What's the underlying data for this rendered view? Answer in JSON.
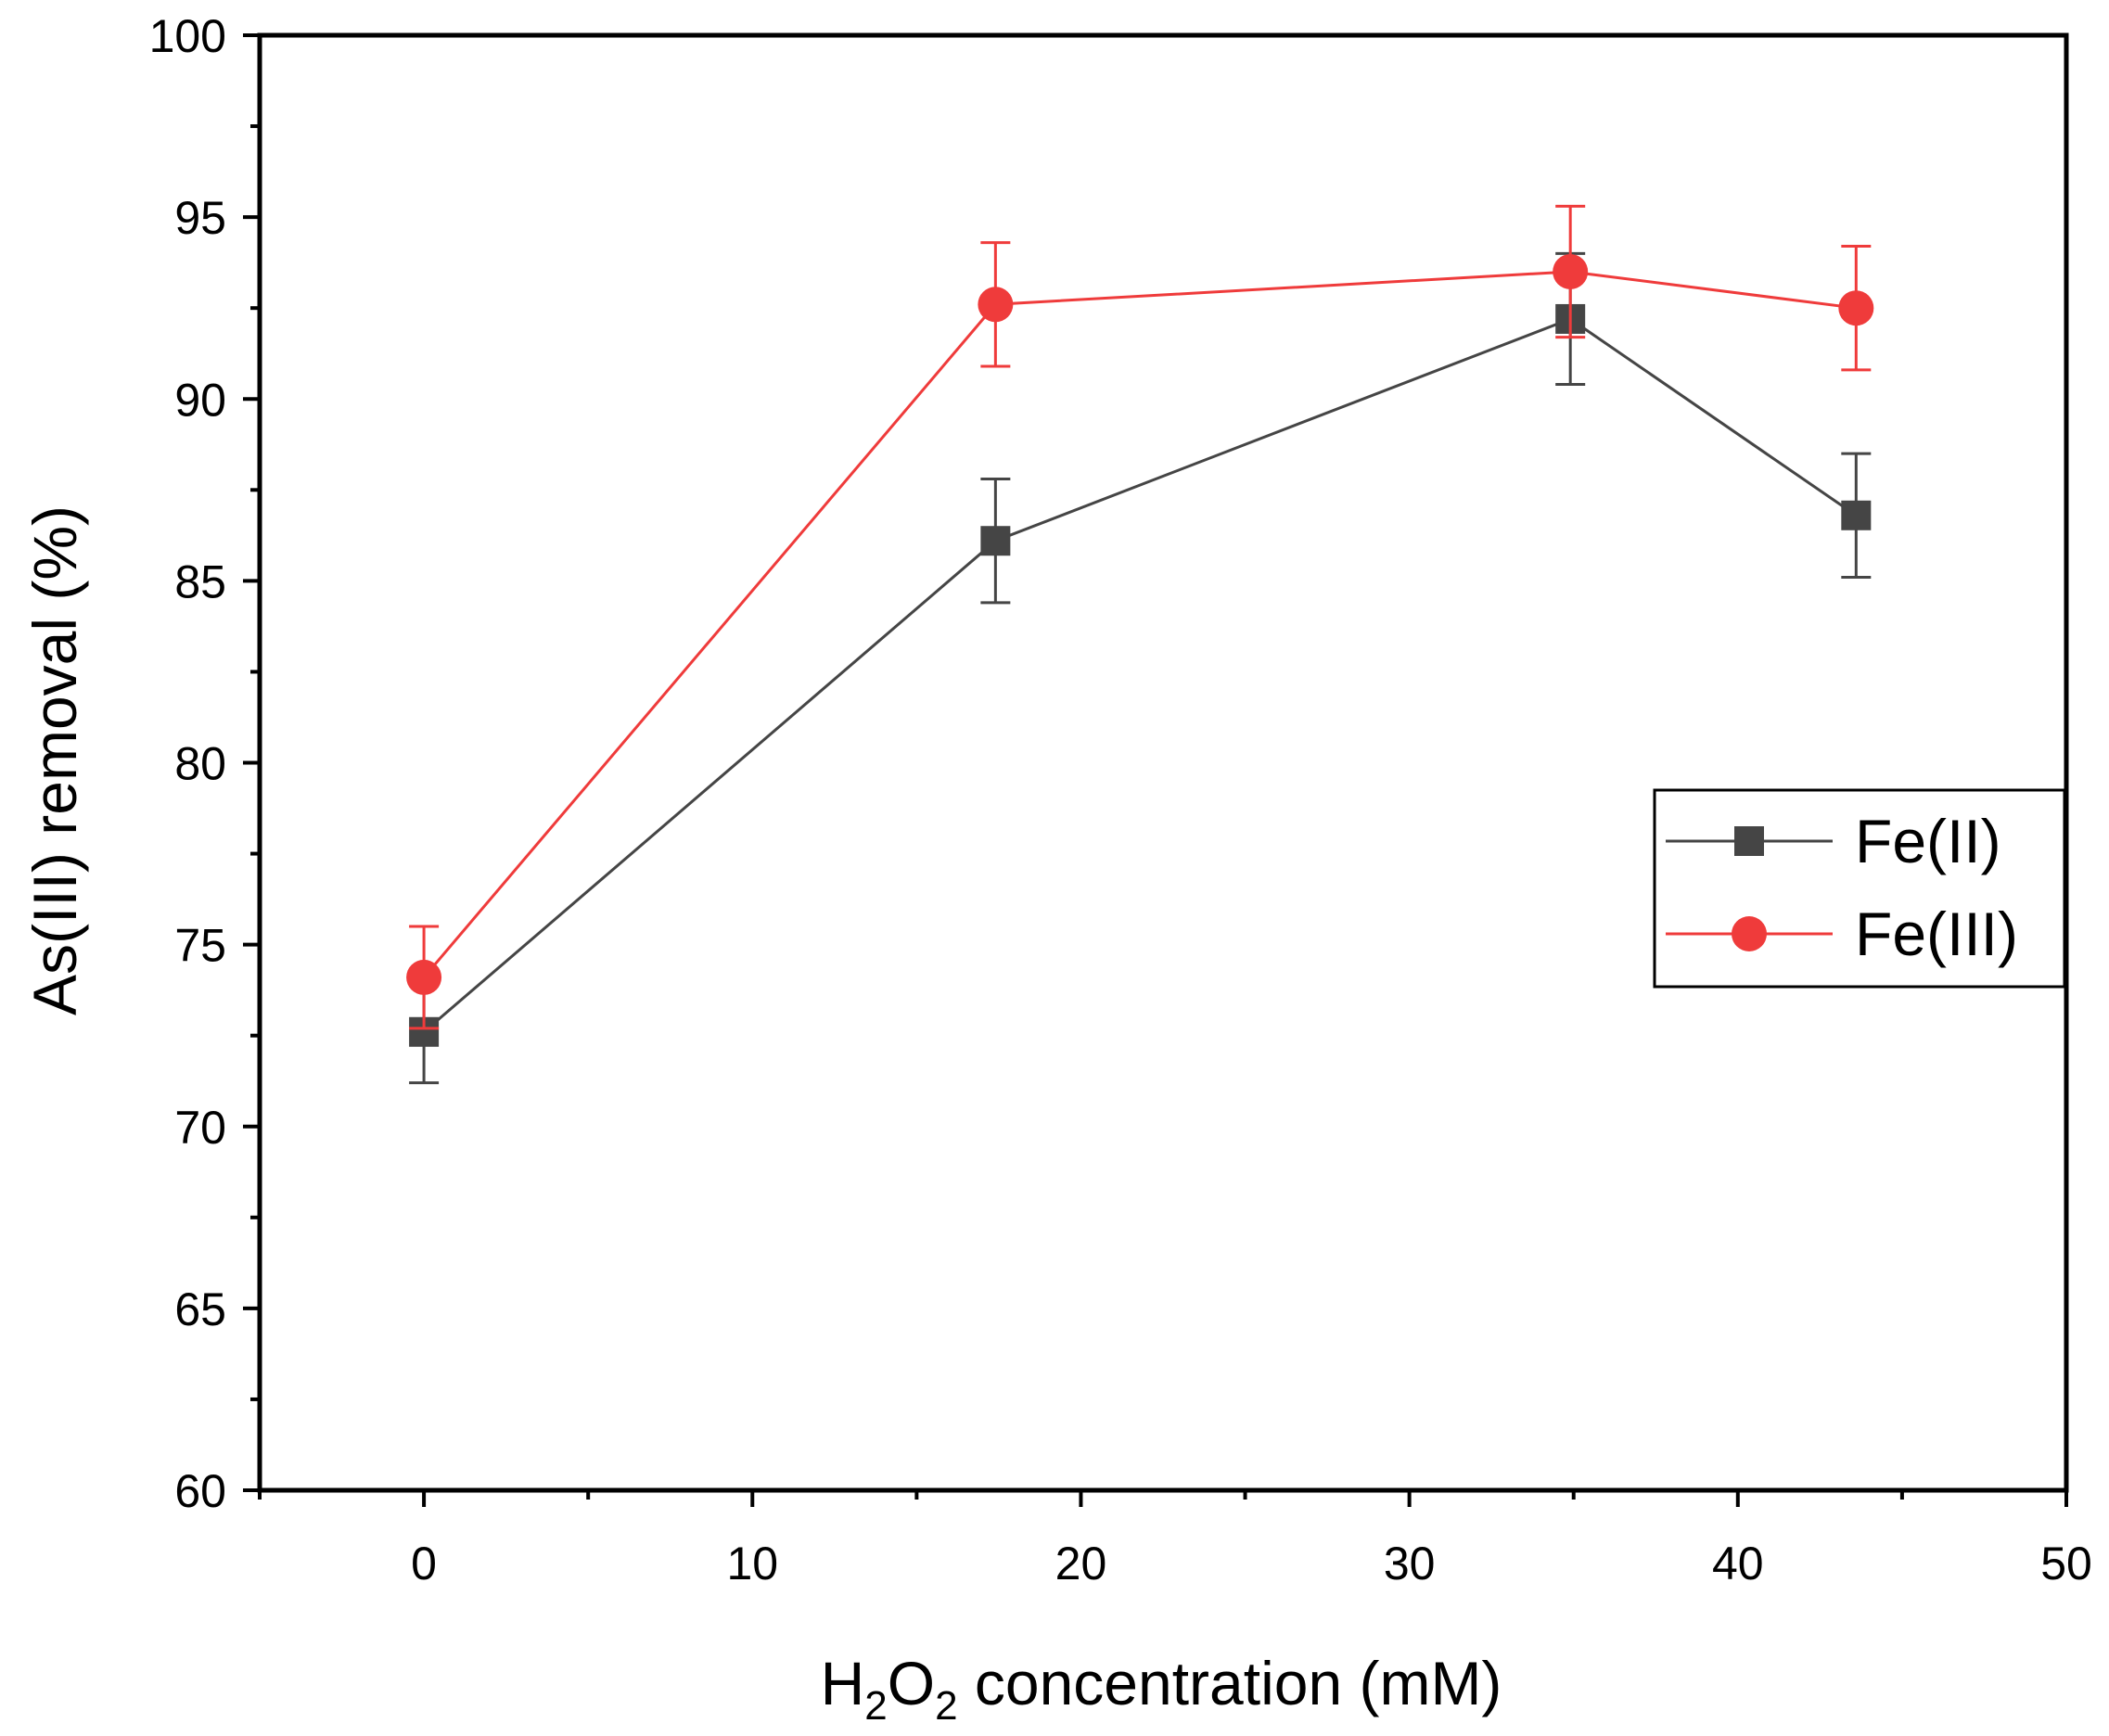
{
  "chart_data": {
    "type": "line",
    "title": "",
    "xlabel": {
      "main": "H",
      "sub1": "2",
      "mid": "O",
      "sub2": "2",
      "rest": " concentration (mM)"
    },
    "ylabel": "As(III) removal (%)",
    "xlim": [
      -5,
      50
    ],
    "ylim": [
      60,
      100
    ],
    "xticks": [
      0,
      10,
      20,
      30,
      40,
      50
    ],
    "yticks": [
      60,
      65,
      70,
      75,
      80,
      85,
      90,
      95,
      100
    ],
    "legend_position": "right",
    "series": [
      {
        "name": "Fe(II)",
        "color": "#454545",
        "marker": "square",
        "x": [
          0,
          17.4,
          34.9,
          43.6
        ],
        "y": [
          72.6,
          86.1,
          92.2,
          86.8
        ],
        "err": [
          1.4,
          1.7,
          1.8,
          1.7
        ]
      },
      {
        "name": "Fe(III)",
        "color": "#ef3b3b",
        "marker": "circle",
        "x": [
          0,
          17.4,
          34.9,
          43.6
        ],
        "y": [
          74.1,
          92.6,
          93.5,
          92.5
        ],
        "err": [
          1.4,
          1.7,
          1.8,
          1.7
        ]
      }
    ]
  }
}
